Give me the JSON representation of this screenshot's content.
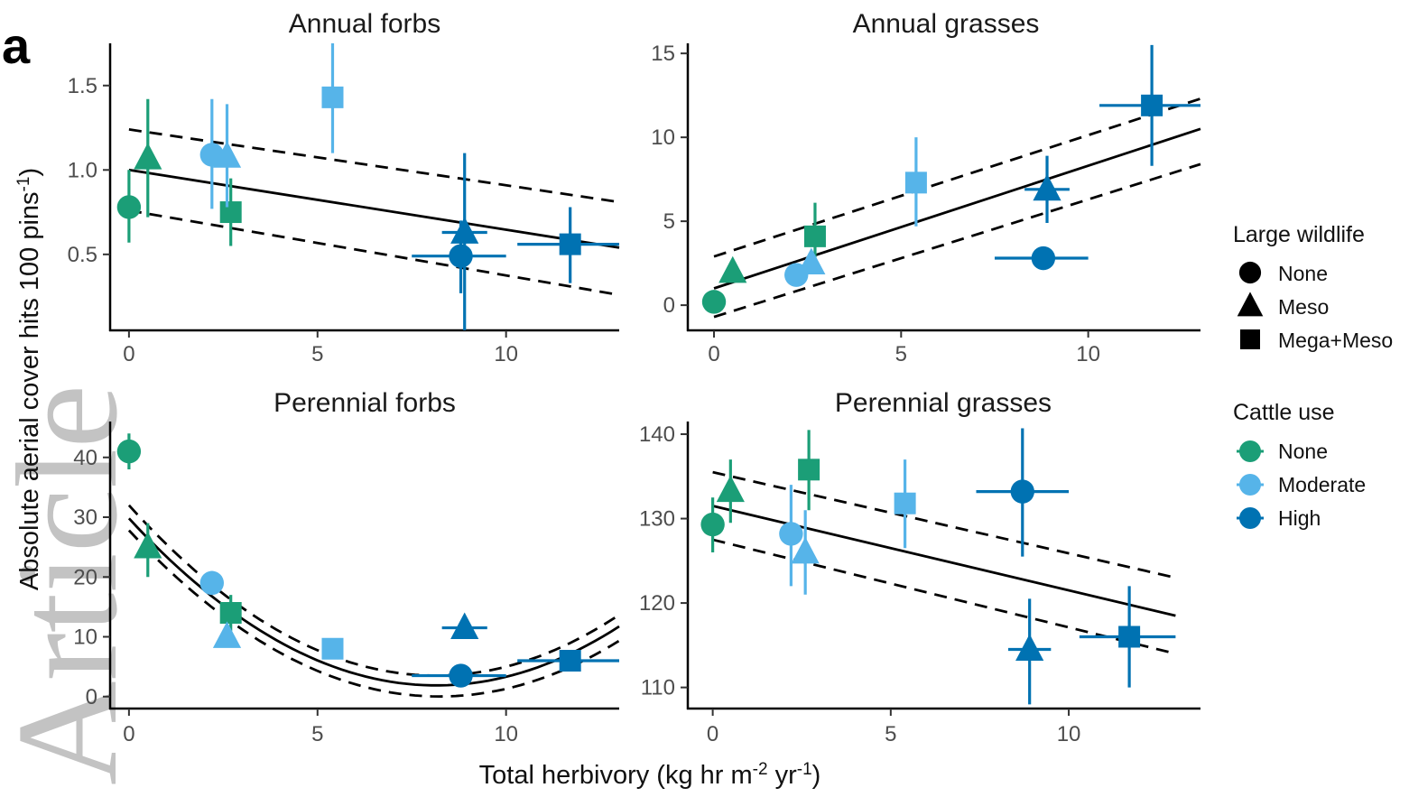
{
  "figure": {
    "letter": "a",
    "xlabel_main": "Total herbivory (kg hr m",
    "xlabel_sup1": "-2",
    "xlabel_mid": " yr",
    "xlabel_sup2": "-1",
    "xlabel_end": ")",
    "ylabel_main": "Absolute aerial cover hits 100 pins",
    "ylabel_sup": "-1",
    "watermark": "Article"
  },
  "legend": {
    "wildlife_title": "Large wildlife",
    "wildlife_items": [
      {
        "label": "None",
        "shape": "circle"
      },
      {
        "label": "Meso",
        "shape": "triangle"
      },
      {
        "label": "Mega+Meso",
        "shape": "square"
      }
    ],
    "cattle_title": "Cattle use",
    "cattle_items": [
      {
        "label": "None",
        "color": "#1b9e77"
      },
      {
        "label": "Moderate",
        "color": "#56b4e9"
      },
      {
        "label": "High",
        "color": "#0072b2"
      }
    ]
  },
  "chart_data": [
    {
      "type": "scatter",
      "title": "Annual forbs",
      "xlim": [
        -0.5,
        13
      ],
      "ylim": [
        0.05,
        1.75
      ],
      "xticks": [
        0,
        5,
        10
      ],
      "yticks": [
        0.5,
        1.0,
        1.5
      ],
      "ytick_labels": [
        "0.5",
        "1.0",
        "1.5"
      ],
      "fit": {
        "kind": "linear",
        "x": [
          0,
          13
        ],
        "y": [
          1.0,
          0.54
        ]
      },
      "ci_upper": {
        "x": [
          0,
          13
        ],
        "y": [
          1.24,
          0.81
        ]
      },
      "ci_lower": {
        "x": [
          0,
          13
        ],
        "y": [
          0.76,
          0.26
        ]
      },
      "points": [
        {
          "x": 0,
          "y": 0.78,
          "shape": "circle",
          "cattle": "None",
          "ylo": 0.57,
          "yhi": 1.0
        },
        {
          "x": 0.5,
          "y": 1.07,
          "shape": "triangle",
          "cattle": "None",
          "ylo": 0.72,
          "yhi": 1.42
        },
        {
          "x": 2.7,
          "y": 0.75,
          "shape": "square",
          "cattle": "None",
          "ylo": 0.55,
          "yhi": 0.95
        },
        {
          "x": 2.2,
          "y": 1.09,
          "shape": "circle",
          "cattle": "Moderate",
          "ylo": 0.77,
          "yhi": 1.42
        },
        {
          "x": 2.6,
          "y": 1.08,
          "shape": "triangle",
          "cattle": "Moderate",
          "ylo": 0.78,
          "yhi": 1.39
        },
        {
          "x": 5.4,
          "y": 1.43,
          "shape": "square",
          "cattle": "Moderate",
          "ylo": 1.1,
          "yhi": 1.75
        },
        {
          "x": 8.8,
          "y": 0.49,
          "shape": "circle",
          "cattle": "High",
          "ylo": 0.27,
          "yhi": 0.7,
          "xlo": 7.5,
          "xhi": 10.0
        },
        {
          "x": 8.9,
          "y": 0.63,
          "shape": "triangle",
          "cattle": "High",
          "ylo": 0.05,
          "yhi": 1.1,
          "xlo": 8.3,
          "xhi": 9.5
        },
        {
          "x": 11.7,
          "y": 0.56,
          "shape": "square",
          "cattle": "High",
          "ylo": 0.33,
          "yhi": 0.78,
          "xlo": 10.3,
          "xhi": 13.0
        }
      ]
    },
    {
      "type": "scatter",
      "title": "Annual grasses",
      "xlim": [
        -0.7,
        13
      ],
      "ylim": [
        -1.5,
        15.6
      ],
      "xticks": [
        0,
        5,
        10
      ],
      "yticks": [
        0,
        5,
        10,
        15
      ],
      "ytick_labels": [
        "0",
        "5",
        "10",
        "15"
      ],
      "fit": {
        "kind": "linear",
        "x": [
          0,
          13
        ],
        "y": [
          1.0,
          10.5
        ]
      },
      "ci_upper": {
        "x": [
          0,
          13
        ],
        "y": [
          2.9,
          12.3
        ]
      },
      "ci_lower": {
        "x": [
          0,
          13
        ],
        "y": [
          -0.7,
          8.4
        ]
      },
      "points": [
        {
          "x": 0,
          "y": 0.2,
          "shape": "circle",
          "cattle": "None",
          "ylo": -0.3,
          "yhi": 0.7
        },
        {
          "x": 0.5,
          "y": 2.0,
          "shape": "triangle",
          "cattle": "None",
          "ylo": 1.4,
          "yhi": 2.7
        },
        {
          "x": 2.7,
          "y": 4.1,
          "shape": "square",
          "cattle": "None",
          "ylo": 2.3,
          "yhi": 6.1
        },
        {
          "x": 2.2,
          "y": 1.8,
          "shape": "circle",
          "cattle": "Moderate",
          "ylo": 1.4,
          "yhi": 2.2
        },
        {
          "x": 2.6,
          "y": 2.5,
          "shape": "triangle",
          "cattle": "Moderate",
          "ylo": 1.9,
          "yhi": 3.1
        },
        {
          "x": 5.4,
          "y": 7.3,
          "shape": "square",
          "cattle": "Moderate",
          "ylo": 4.7,
          "yhi": 10.0
        },
        {
          "x": 8.8,
          "y": 2.8,
          "shape": "circle",
          "cattle": "High",
          "ylo": 2.1,
          "yhi": 3.4,
          "xlo": 7.5,
          "xhi": 10.0
        },
        {
          "x": 8.9,
          "y": 6.9,
          "shape": "triangle",
          "cattle": "High",
          "ylo": 4.9,
          "yhi": 8.9,
          "xlo": 8.3,
          "xhi": 9.5
        },
        {
          "x": 11.7,
          "y": 11.9,
          "shape": "square",
          "cattle": "High",
          "ylo": 8.3,
          "yhi": 15.5,
          "xlo": 10.3,
          "xhi": 13.0
        }
      ]
    },
    {
      "type": "scatter",
      "title": "Perennial forbs",
      "xlim": [
        -0.5,
        13
      ],
      "ylim": [
        -2,
        46
      ],
      "xticks": [
        0,
        5,
        10
      ],
      "yticks": [
        0,
        10,
        20,
        30,
        40
      ],
      "ytick_labels": [
        "0",
        "10",
        "20",
        "30",
        "40"
      ],
      "fit": {
        "kind": "quadratic",
        "x": [
          0,
          13
        ],
        "coef": [
          29.8,
          -6.85,
          0.42
        ]
      },
      "ci_upper": {
        "kind": "quadratic",
        "x": [
          0,
          13
        ],
        "coef": [
          32.0,
          -7.0,
          0.43
        ]
      },
      "ci_lower": {
        "kind": "quadratic",
        "x": [
          0,
          13
        ],
        "coef": [
          27.8,
          -6.75,
          0.41
        ]
      },
      "points": [
        {
          "x": 0,
          "y": 41.0,
          "shape": "circle",
          "cattle": "None",
          "ylo": 38.0,
          "yhi": 44.0
        },
        {
          "x": 0.5,
          "y": 25.0,
          "shape": "triangle",
          "cattle": "None",
          "ylo": 20.0,
          "yhi": 29.0
        },
        {
          "x": 2.7,
          "y": 14.0,
          "shape": "square",
          "cattle": "None",
          "ylo": 11.0,
          "yhi": 17.0
        },
        {
          "x": 2.2,
          "y": 19.0,
          "shape": "circle",
          "cattle": "Moderate",
          "ylo": 17.0,
          "yhi": 21.0
        },
        {
          "x": 2.6,
          "y": 10.0,
          "shape": "triangle",
          "cattle": "Moderate",
          "ylo": 8.5,
          "yhi": 11.5
        },
        {
          "x": 5.4,
          "y": 8.0,
          "shape": "square",
          "cattle": "Moderate",
          "ylo": 7.0,
          "yhi": 9.0
        },
        {
          "x": 8.8,
          "y": 3.5,
          "shape": "circle",
          "cattle": "High",
          "ylo": 2.5,
          "yhi": 4.5,
          "xlo": 7.5,
          "xhi": 10.0
        },
        {
          "x": 8.9,
          "y": 11.5,
          "shape": "triangle",
          "cattle": "High",
          "ylo": 10.0,
          "yhi": 13.0,
          "xlo": 8.3,
          "xhi": 9.5
        },
        {
          "x": 11.7,
          "y": 6.0,
          "shape": "square",
          "cattle": "High",
          "ylo": 5.0,
          "yhi": 7.0,
          "xlo": 10.3,
          "xhi": 13.0
        }
      ]
    },
    {
      "type": "scatter",
      "title": "Perennial grasses",
      "xlim": [
        -0.7,
        13.7
      ],
      "ylim": [
        107.5,
        141.5
      ],
      "xticks": [
        0,
        5,
        10
      ],
      "yticks": [
        110,
        120,
        130,
        140
      ],
      "ytick_labels": [
        "110",
        "120",
        "130",
        "140"
      ],
      "fit": {
        "kind": "linear",
        "x": [
          0,
          13
        ],
        "y": [
          131.5,
          118.5
        ]
      },
      "ci_upper": {
        "x": [
          0,
          13
        ],
        "y": [
          135.5,
          123.0
        ]
      },
      "ci_lower": {
        "x": [
          0,
          13
        ],
        "y": [
          127.5,
          114.0
        ]
      },
      "points": [
        {
          "x": 0,
          "y": 129.3,
          "shape": "circle",
          "cattle": "None",
          "ylo": 126.0,
          "yhi": 132.5
        },
        {
          "x": 0.5,
          "y": 133.3,
          "shape": "triangle",
          "cattle": "None",
          "ylo": 129.5,
          "yhi": 137.0
        },
        {
          "x": 2.7,
          "y": 135.8,
          "shape": "square",
          "cattle": "None",
          "ylo": 131.0,
          "yhi": 140.5
        },
        {
          "x": 2.2,
          "y": 128.2,
          "shape": "circle",
          "cattle": "Moderate",
          "ylo": 122.0,
          "yhi": 134.0
        },
        {
          "x": 2.6,
          "y": 126.0,
          "shape": "triangle",
          "cattle": "Moderate",
          "ylo": 121.0,
          "yhi": 131.0
        },
        {
          "x": 5.4,
          "y": 131.8,
          "shape": "square",
          "cattle": "Moderate",
          "ylo": 126.5,
          "yhi": 137.0
        },
        {
          "x": 8.7,
          "y": 133.2,
          "shape": "circle",
          "cattle": "High",
          "ylo": 125.5,
          "yhi": 140.7,
          "xlo": 7.4,
          "xhi": 10.0
        },
        {
          "x": 8.9,
          "y": 114.5,
          "shape": "triangle",
          "cattle": "High",
          "ylo": 108.0,
          "yhi": 120.5,
          "xlo": 8.3,
          "xhi": 9.5
        },
        {
          "x": 11.7,
          "y": 116.0,
          "shape": "square",
          "cattle": "High",
          "ylo": 110.0,
          "yhi": 122.0,
          "xlo": 10.3,
          "xhi": 13.0
        }
      ]
    }
  ]
}
